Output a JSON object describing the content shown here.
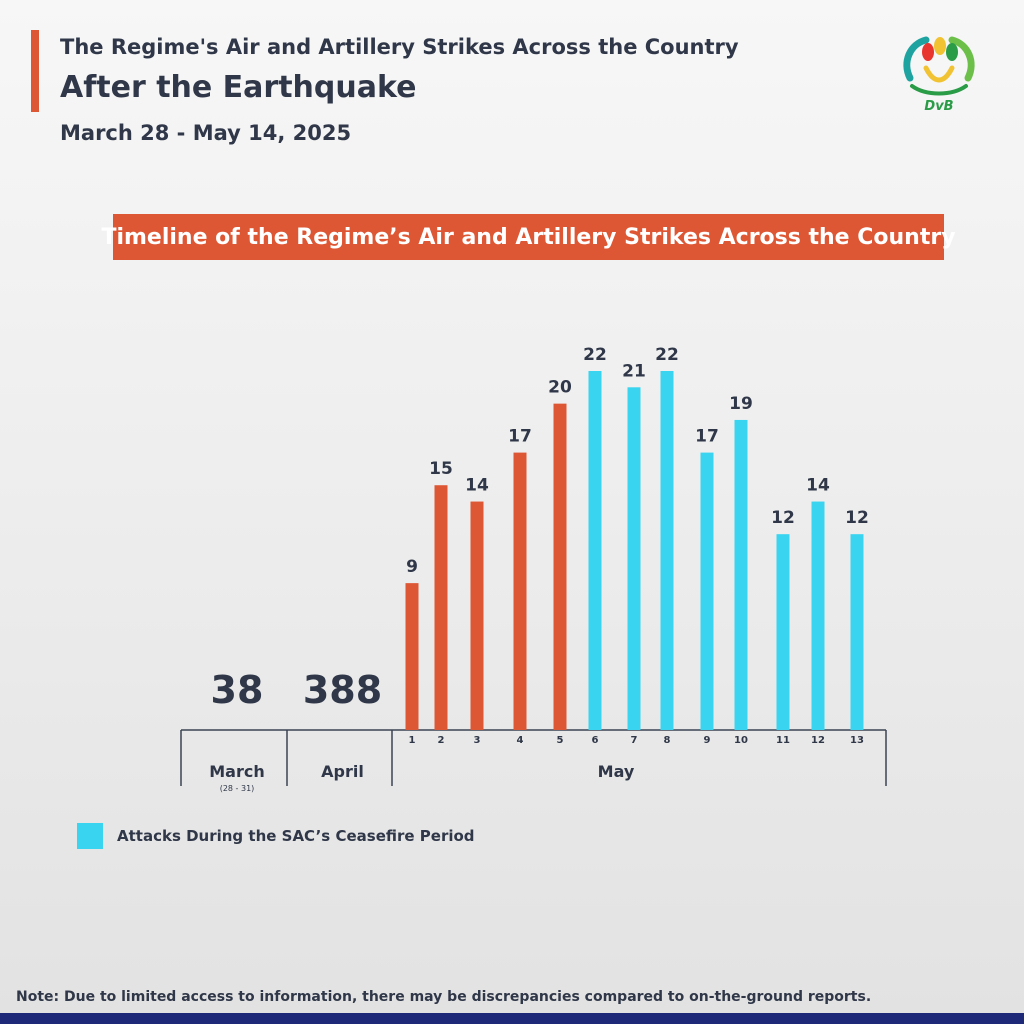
{
  "header": {
    "title_line1": "The Regime's Air and Artillery Strikes Across the Country",
    "title_line2": "After the Earthquake",
    "date_range": "March 28 - May 14, 2025",
    "logo_text": "DvB"
  },
  "banner": {
    "text": "Timeline of the Regime’s Air and Artillery Strikes Across the Country"
  },
  "chart_data": {
    "type": "bar",
    "title": "Timeline of the Regime’s Air and Artillery Strikes Across the Country",
    "totals": [
      {
        "label": "March",
        "sublabel": "(28 - 31)",
        "value": 38
      },
      {
        "label": "April",
        "sublabel": "",
        "value": 388
      }
    ],
    "month_label": "May",
    "categories": [
      "1",
      "2",
      "3",
      "4",
      "5",
      "6",
      "7",
      "8",
      "9",
      "10",
      "11",
      "12",
      "13"
    ],
    "values": [
      9,
      15,
      14,
      17,
      20,
      22,
      21,
      22,
      17,
      19,
      12,
      14,
      12
    ],
    "ceasefire": [
      false,
      false,
      false,
      false,
      false,
      true,
      true,
      true,
      true,
      true,
      true,
      true,
      true
    ],
    "colors": {
      "normal": "#de5734",
      "ceasefire": "#39d4ef"
    },
    "legend": {
      "label": "Attacks During the SAC’s Ceasefire Period",
      "color": "#39d4ef",
      "placement": "bottom-left"
    },
    "ylim": [
      0,
      22
    ],
    "grid": false
  },
  "footer": {
    "note": "Note: Due to limited access to information, there may be discrepancies compared to on-the-ground reports."
  },
  "colors": {
    "accent": "#de5734",
    "ceasefire": "#39d4ef",
    "text": "#2f3748",
    "footer_bar": "#1e2a78"
  }
}
